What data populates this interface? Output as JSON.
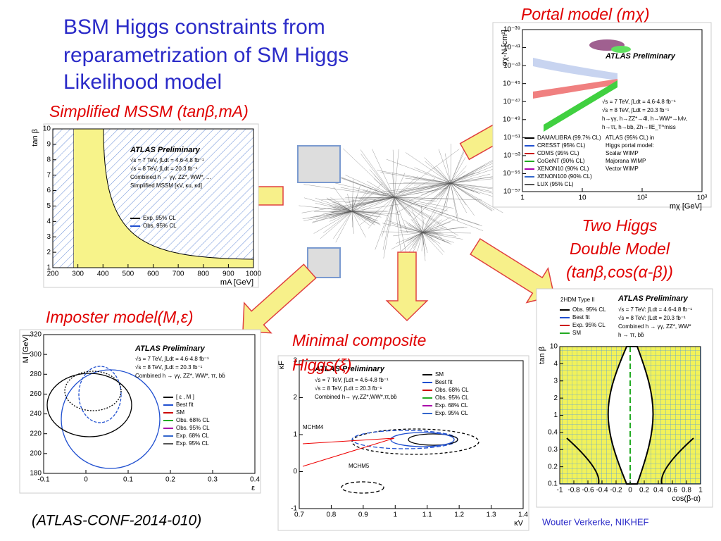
{
  "title": {
    "lines": [
      "BSM Higgs constraints from",
      "reparametrization of SM Higgs",
      "Likelihood model"
    ]
  },
  "captions": {
    "portal": "Portal model (mχ)",
    "mssm": "Simplified MSSM (tanβ,mA)",
    "thdm": [
      "Two Higgs",
      "Double Model",
      "(tanβ,cos(α-β))"
    ],
    "imposter": "Imposter model(M,ε)",
    "composite": [
      "Minimal composite",
      "Higgs(ξ)"
    ]
  },
  "panels": {
    "portal": {
      "atlas": "ATLAS Preliminary",
      "ylabel": "σχ-N [cm²]",
      "xlabel": "mχ [GeV]",
      "yticks": [
        "10⁻³⁹",
        "10⁻⁴¹",
        "10⁻⁴³",
        "10⁻⁴⁵",
        "10⁻⁴⁷",
        "10⁻⁴⁹",
        "10⁻⁵¹",
        "10⁻⁵³",
        "10⁻⁵⁵",
        "10⁻⁵⁷"
      ],
      "xticks": [
        "1",
        "10",
        "10²",
        "10³"
      ],
      "info": [
        "√s = 7 TeV, ∫Ldt = 4.6-4.8 fb⁻¹",
        "√s = 8 TeV, ∫Ldt = 20.3 fb⁻¹",
        "h→γγ, h→ZZ*→4l, h→WW*→lνlν,",
        "h→ττ, h→bb, Zh→llE_T^miss"
      ],
      "legend": [
        "DAMA/LIBRA (99.7% CL)",
        "CRESST (95% CL)",
        "CDMS (95% CL)",
        "CoGeNT (90% CL)",
        "XENON10 (90% CL)",
        "XENON100 (90% CL)",
        "LUX (95% CL)"
      ],
      "legend2": [
        "ATLAS (95% CL) in",
        "Higgs portal model:",
        "Scalar WIMP",
        "Majorana WIMP",
        "Vector WIMP"
      ]
    },
    "mssm": {
      "atlas": "ATLAS Preliminary",
      "ylabel": "tan β",
      "xlabel": "mA [GeV]",
      "yticks": [
        "10",
        "9",
        "8",
        "7",
        "6",
        "5",
        "4",
        "3",
        "2",
        "1"
      ],
      "xticks": [
        "200",
        "300",
        "400",
        "500",
        "600",
        "700",
        "800",
        "900",
        "1000"
      ],
      "info": [
        "√s = 7 TeV, ∫Ldt = 4.6-4.8 fb⁻¹",
        "√s = 8 TeV, ∫Ldt = 20.3 fb⁻¹",
        "Combined h → γγ, ZZ*, WW*, ...",
        "Simplified MSSM [κV, κu, κd]"
      ],
      "legend": [
        "Exp. 95% CL",
        "Obs. 95% CL"
      ]
    },
    "thdm": {
      "atlas": "ATLAS Preliminary",
      "header": "2HDM Type II",
      "ylabel": "tan β",
      "xlabel": "cos(β-α)",
      "yticks": [
        "10",
        "4",
        "3",
        "2",
        "1",
        "0.4",
        "0.3",
        "0.2",
        "0.1"
      ],
      "xticks": [
        "-1",
        "-0.8",
        "-0.6",
        "-0.4",
        "-0.2",
        "0",
        "0.2",
        "0.4",
        "0.6",
        "0.8",
        "1"
      ],
      "info": [
        "√s = 7 TeV: ∫Ldt = 4.6-4.8 fb⁻¹",
        "√s = 8 TeV: ∫Ldt = 20.3 fb⁻¹",
        "Combined h → γγ, ZZ*, WW*",
        "h → ττ, bb̄"
      ],
      "legend": [
        "Obs. 95% CL",
        "Best fit",
        "Exp. 95% CL",
        "SM"
      ]
    },
    "imposter": {
      "atlas": "ATLAS Preliminary",
      "ylabel": "M [GeV]",
      "xlabel": "ε",
      "yticks": [
        "320",
        "300",
        "280",
        "260",
        "240",
        "220",
        "200",
        "180"
      ],
      "xticks": [
        "-0.1",
        "0",
        "0.1",
        "0.2",
        "0.3",
        "0.4"
      ],
      "info": [
        "√s = 7 TeV, ∫Ldt = 4.6-4.8 fb⁻¹",
        "√s = 8 TeV, ∫Ldt = 20.3 fb⁻¹",
        "Combined h → γγ, ZZ*, WW*, ττ, bb̄"
      ],
      "legend": [
        "[ ε , M ]",
        "Best fit",
        "SM",
        "Obs. 68% CL",
        "Obs. 95% CL",
        "Exp. 68% CL",
        "Exp. 95% CL"
      ]
    },
    "composite": {
      "atlas": "ATLAS Preliminary",
      "ylabel": "κF",
      "xlabel": "κV",
      "yticks": [
        "3",
        "2",
        "1",
        "0",
        "-1"
      ],
      "xticks": [
        "0.7",
        "0.8",
        "0.9",
        "1",
        "1.1",
        "1.2",
        "1.3",
        "1.4"
      ],
      "info": [
        "√s = 7 TeV, ∫Ldt = 4.6-4.8 fb⁻¹",
        "√s = 8 TeV, ∫Ldt = 20.3 fb⁻¹",
        "Combined h→ γγ,ZZ*,WW*,ττ,bb̄"
      ],
      "legend": [
        "SM",
        "Best fit",
        "Obs. 68% CL",
        "Obs. 95% CL",
        "Exp. 68% CL",
        "Exp. 95% CL"
      ],
      "annotations": [
        "MCHM4",
        "MCHM5"
      ]
    }
  },
  "footer": {
    "reference": "(ATLAS-CONF-2014-010)",
    "author": "Wouter Verkerke, NIKHEF"
  }
}
